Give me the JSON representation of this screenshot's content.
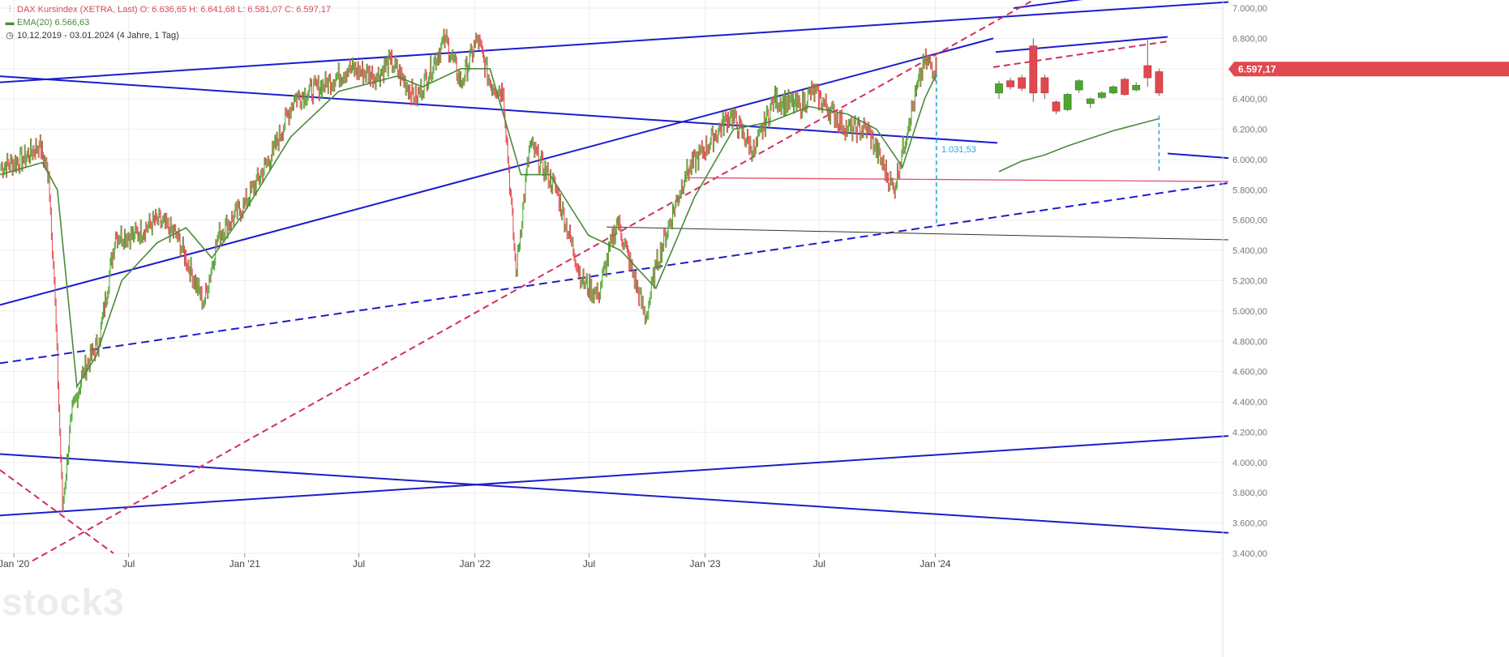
{
  "header": {
    "title_line": "DAX Kursindex (XETRA, Last)  O: 6.636,65  H: 6.641,68  L: 6.581,07  C: 6.597,17",
    "ema_line": "EMA(20)  6.566,63",
    "range_line": "10.12.2019 - 03.01.2024   (4 Jahre, 1 Tag)"
  },
  "watermark": "stock3",
  "colors": {
    "trendline": "#1c1ccc",
    "dashed_red": "#d0305a",
    "price_up": "#4ca72f",
    "price_down": "#e2484f",
    "ema": "#4a8a3a",
    "measure": "#29a8e0",
    "horizontal_support": "#e2506a",
    "black_line": "#333333",
    "grid": "#eeeeee"
  },
  "chart_data": {
    "type": "line",
    "title": "DAX Kursindex (XETRA, Last)",
    "x_range": [
      "2019-12-10",
      "2024-01-03"
    ],
    "x_tick_labels": [
      "Jan '20",
      "Jul",
      "Jan '21",
      "Jul",
      "Jan '22",
      "Jul",
      "Jan '23",
      "Jul",
      "Jan '24"
    ],
    "y_range": [
      3400,
      7100
    ],
    "y_tick_labels": [
      "3.400,00",
      "3.600,00",
      "3.800,00",
      "4.000,00",
      "4.200,00",
      "4.400,00",
      "4.600,00",
      "4.800,00",
      "5.000,00",
      "5.200,00",
      "5.400,00",
      "5.600,00",
      "5.800,00",
      "6.000,00",
      "6.200,00",
      "6.400,00",
      "6.600,00",
      "6.800,00",
      "7.000,00"
    ],
    "grid": true,
    "series": [
      {
        "name": "DAX Kursindex (XETRA, Last)",
        "points": [
          [
            "2019-12-10",
            5950
          ],
          [
            "2020-01-15",
            6000
          ],
          [
            "2020-02-10",
            6100
          ],
          [
            "2020-02-25",
            5900
          ],
          [
            "2020-03-05",
            5200
          ],
          [
            "2020-03-18",
            3700
          ],
          [
            "2020-04-01",
            4300
          ],
          [
            "2020-04-20",
            4600
          ],
          [
            "2020-05-15",
            4800
          ],
          [
            "2020-06-10",
            5500
          ],
          [
            "2020-07-10",
            5500
          ],
          [
            "2020-08-15",
            5600
          ],
          [
            "2020-09-15",
            5500
          ],
          [
            "2020-10-28",
            5050
          ],
          [
            "2020-11-20",
            5500
          ],
          [
            "2020-12-31",
            5700
          ],
          [
            "2021-02-15",
            6050
          ],
          [
            "2021-03-20",
            6400
          ],
          [
            "2021-05-10",
            6500
          ],
          [
            "2021-06-15",
            6600
          ],
          [
            "2021-07-30",
            6550
          ],
          [
            "2021-08-20",
            6650
          ],
          [
            "2021-09-30",
            6400
          ],
          [
            "2021-11-15",
            6800
          ],
          [
            "2021-12-10",
            6500
          ],
          [
            "2022-01-05",
            6800
          ],
          [
            "2022-01-25",
            6500
          ],
          [
            "2022-02-15",
            6450
          ],
          [
            "2022-03-07",
            5250
          ],
          [
            "2022-03-29",
            6100
          ],
          [
            "2022-05-10",
            5800
          ],
          [
            "2022-06-20",
            5200
          ],
          [
            "2022-07-15",
            5100
          ],
          [
            "2022-08-15",
            5600
          ],
          [
            "2022-09-29",
            4950
          ],
          [
            "2022-10-15",
            5300
          ],
          [
            "2022-11-30",
            5900
          ],
          [
            "2023-01-15",
            6150
          ],
          [
            "2023-02-10",
            6300
          ],
          [
            "2023-03-20",
            6050
          ],
          [
            "2023-04-20",
            6400
          ],
          [
            "2023-05-31",
            6350
          ],
          [
            "2023-06-20",
            6450
          ],
          [
            "2023-08-15",
            6200
          ],
          [
            "2023-09-15",
            6200
          ],
          [
            "2023-10-27",
            5800
          ],
          [
            "2023-11-20",
            6250
          ],
          [
            "2023-12-15",
            6650
          ],
          [
            "2024-01-03",
            6597.17
          ]
        ]
      },
      {
        "name": "EMA(20)",
        "points": [
          [
            "2019-12-10",
            5900
          ],
          [
            "2020-02-15",
            5980
          ],
          [
            "2020-03-10",
            5800
          ],
          [
            "2020-04-10",
            4500
          ],
          [
            "2020-05-10",
            4700
          ],
          [
            "2020-06-20",
            5200
          ],
          [
            "2020-08-15",
            5450
          ],
          [
            "2020-09-30",
            5550
          ],
          [
            "2020-11-10",
            5350
          ],
          [
            "2020-12-31",
            5650
          ],
          [
            "2021-03-15",
            6150
          ],
          [
            "2021-05-30",
            6450
          ],
          [
            "2021-08-30",
            6550
          ],
          [
            "2021-10-10",
            6480
          ],
          [
            "2021-12-10",
            6600
          ],
          [
            "2022-01-25",
            6600
          ],
          [
            "2022-03-15",
            5900
          ],
          [
            "2022-04-30",
            5900
          ],
          [
            "2022-06-30",
            5500
          ],
          [
            "2022-08-20",
            5400
          ],
          [
            "2022-10-15",
            5150
          ],
          [
            "2022-12-15",
            5750
          ],
          [
            "2023-02-15",
            6200
          ],
          [
            "2023-04-15",
            6250
          ],
          [
            "2023-06-15",
            6350
          ],
          [
            "2023-08-15",
            6300
          ],
          [
            "2023-09-30",
            6200
          ],
          [
            "2023-11-10",
            5950
          ],
          [
            "2023-12-15",
            6400
          ],
          [
            "2024-01-03",
            6566.63
          ]
        ]
      }
    ],
    "inset_candles": [
      {
        "o": 6440,
        "c": 6500,
        "h": 6520,
        "l": 6400
      },
      {
        "o": 6520,
        "c": 6480,
        "h": 6540,
        "l": 6460
      },
      {
        "o": 6540,
        "c": 6470,
        "h": 6560,
        "l": 6450
      },
      {
        "o": 6750,
        "c": 6440,
        "h": 6800,
        "l": 6380
      },
      {
        "o": 6540,
        "c": 6440,
        "h": 6560,
        "l": 6400
      },
      {
        "o": 6380,
        "c": 6320,
        "h": 6390,
        "l": 6300
      },
      {
        "o": 6330,
        "c": 6430,
        "h": 6440,
        "l": 6320
      },
      {
        "o": 6460,
        "c": 6520,
        "h": 6530,
        "l": 6440
      },
      {
        "o": 6370,
        "c": 6400,
        "h": 6410,
        "l": 6340
      },
      {
        "o": 6410,
        "c": 6440,
        "h": 6450,
        "l": 6400
      },
      {
        "o": 6440,
        "c": 6480,
        "h": 6490,
        "l": 6430
      },
      {
        "o": 6530,
        "c": 6430,
        "h": 6540,
        "l": 6420
      },
      {
        "o": 6460,
        "c": 6490,
        "h": 6510,
        "l": 6450
      },
      {
        "o": 6620,
        "c": 6540,
        "h": 6800,
        "l": 6480
      },
      {
        "o": 6580,
        "c": 6440,
        "h": 6600,
        "l": 6420
      }
    ],
    "measurement_label": "1.031,53",
    "last_price_label": "6.597,17",
    "last_price": 6597.17
  }
}
